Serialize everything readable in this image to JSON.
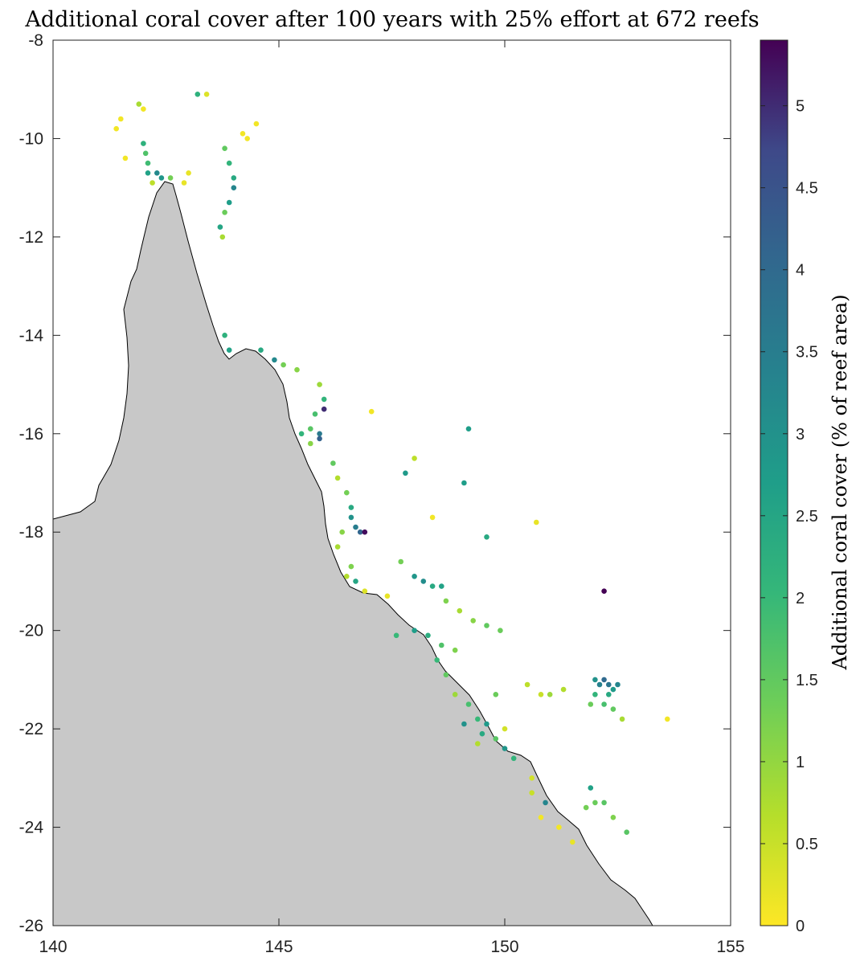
{
  "chart_data": {
    "type": "scatter",
    "title": "Additional coral cover after 100 years with 25% effort at 672 reefs",
    "xlim": [
      140,
      155
    ],
    "ylim": [
      -26,
      -8
    ],
    "x_ticks": [
      "140",
      "145",
      "150",
      "155"
    ],
    "y_ticks": [
      "-8",
      "-10",
      "-12",
      "-14",
      "-16",
      "-18",
      "-20",
      "-22",
      "-24",
      "-26"
    ],
    "colorbar": {
      "label": "Additional coral cover (% of reef area)",
      "range": [
        0,
        5.4
      ],
      "ticks": [
        "0",
        "0.5",
        "1",
        "1.5",
        "2",
        "2.5",
        "3",
        "3.5",
        "4",
        "4.5",
        "5"
      ],
      "colormap": "viridis-reversed"
    },
    "land_color": "#c8c8c8",
    "grid": false,
    "series": [
      {
        "points": [
          [
            141.4,
            -9.8,
            0.1
          ],
          [
            141.5,
            -9.6,
            0.1
          ],
          [
            141.6,
            -10.4,
            0.1
          ],
          [
            141.9,
            -9.3,
            0.8
          ],
          [
            142.0,
            -9.4,
            0.1
          ],
          [
            142.0,
            -10.1,
            2.2
          ],
          [
            142.05,
            -10.3,
            1.7
          ],
          [
            142.1,
            -10.5,
            1.9
          ],
          [
            142.1,
            -10.7,
            2.6
          ],
          [
            142.2,
            -10.9,
            0.6
          ],
          [
            142.3,
            -10.7,
            3.2
          ],
          [
            142.4,
            -10.8,
            2.9
          ],
          [
            142.6,
            -10.8,
            1.3
          ],
          [
            142.9,
            -10.9,
            0.2
          ],
          [
            143.0,
            -10.7,
            0.2
          ],
          [
            143.2,
            -9.1,
            2.2
          ],
          [
            143.4,
            -9.1,
            0.3
          ],
          [
            143.8,
            -10.2,
            1.5
          ],
          [
            143.9,
            -10.5,
            2.1
          ],
          [
            144.0,
            -10.8,
            2.4
          ],
          [
            144.0,
            -11.0,
            3.3
          ],
          [
            143.9,
            -11.3,
            2.7
          ],
          [
            143.8,
            -11.5,
            1.4
          ],
          [
            143.7,
            -11.8,
            2.5
          ],
          [
            143.75,
            -12.0,
            0.8
          ],
          [
            144.3,
            -10.0,
            0.1
          ],
          [
            144.5,
            -9.7,
            0.1
          ],
          [
            144.2,
            -9.9,
            0.1
          ],
          [
            143.8,
            -14.0,
            2.2
          ],
          [
            143.9,
            -14.3,
            2.6
          ],
          [
            144.6,
            -14.3,
            2.4
          ],
          [
            144.9,
            -14.5,
            3.2
          ],
          [
            145.1,
            -14.6,
            1.3
          ],
          [
            145.4,
            -14.7,
            1.1
          ],
          [
            145.9,
            -15.0,
            0.9
          ],
          [
            146.0,
            -15.3,
            2.1
          ],
          [
            146.0,
            -15.5,
            5.0
          ],
          [
            145.8,
            -15.6,
            1.8
          ],
          [
            145.7,
            -15.9,
            1.6
          ],
          [
            145.9,
            -16.0,
            3.6
          ],
          [
            145.9,
            -16.1,
            4.2
          ],
          [
            145.5,
            -16.0,
            2.1
          ],
          [
            145.7,
            -16.2,
            1.1
          ],
          [
            146.2,
            -16.6,
            1.5
          ],
          [
            146.3,
            -16.9,
            0.7
          ],
          [
            146.5,
            -17.2,
            1.3
          ],
          [
            146.6,
            -17.5,
            2.4
          ],
          [
            146.6,
            -17.7,
            3.0
          ],
          [
            146.7,
            -17.9,
            3.5
          ],
          [
            146.8,
            -18.0,
            4.1
          ],
          [
            146.9,
            -18.0,
            5.3
          ],
          [
            146.4,
            -18.0,
            1.1
          ],
          [
            146.3,
            -18.3,
            0.8
          ],
          [
            146.6,
            -18.7,
            1.2
          ],
          [
            146.5,
            -18.9,
            0.7
          ],
          [
            146.7,
            -19.0,
            2.5
          ],
          [
            146.9,
            -19.2,
            0.3
          ],
          [
            147.4,
            -19.3,
            0.2
          ],
          [
            147.7,
            -18.6,
            1.3
          ],
          [
            148.0,
            -18.9,
            2.9
          ],
          [
            148.2,
            -19.0,
            3.1
          ],
          [
            148.4,
            -19.1,
            2.4
          ],
          [
            148.6,
            -19.1,
            2.6
          ],
          [
            148.7,
            -19.4,
            1.2
          ],
          [
            149.0,
            -19.6,
            0.8
          ],
          [
            149.3,
            -19.8,
            1.1
          ],
          [
            149.6,
            -19.9,
            1.5
          ],
          [
            149.9,
            -20.0,
            1.4
          ],
          [
            147.6,
            -20.1,
            2.0
          ],
          [
            148.0,
            -20.0,
            2.7
          ],
          [
            148.3,
            -20.1,
            2.3
          ],
          [
            148.6,
            -20.3,
            1.7
          ],
          [
            148.9,
            -20.4,
            1.2
          ],
          [
            148.5,
            -20.6,
            2.0
          ],
          [
            148.7,
            -20.9,
            1.5
          ],
          [
            148.9,
            -21.3,
            0.9
          ],
          [
            149.2,
            -21.5,
            1.8
          ],
          [
            149.4,
            -21.8,
            2.0
          ],
          [
            149.5,
            -22.1,
            2.4
          ],
          [
            149.8,
            -22.2,
            1.6
          ],
          [
            150.0,
            -22.4,
            2.9
          ],
          [
            150.2,
            -22.6,
            2.1
          ],
          [
            149.4,
            -22.3,
            0.7
          ],
          [
            149.1,
            -21.9,
            3.0
          ],
          [
            149.6,
            -21.9,
            2.8
          ],
          [
            149.8,
            -21.3,
            1.4
          ],
          [
            150.0,
            -22.0,
            0.4
          ],
          [
            150.5,
            -21.1,
            0.6
          ],
          [
            150.8,
            -21.3,
            0.5
          ],
          [
            151.0,
            -21.3,
            0.9
          ],
          [
            151.3,
            -21.2,
            0.7
          ],
          [
            152.0,
            -21.0,
            3.0
          ],
          [
            152.1,
            -21.1,
            3.4
          ],
          [
            152.2,
            -21.0,
            4.0
          ],
          [
            152.3,
            -21.1,
            3.7
          ],
          [
            152.4,
            -21.2,
            2.8
          ],
          [
            152.5,
            -21.1,
            3.3
          ],
          [
            152.3,
            -21.3,
            2.4
          ],
          [
            152.2,
            -21.5,
            1.8
          ],
          [
            152.0,
            -21.3,
            2.1
          ],
          [
            151.9,
            -21.5,
            1.4
          ],
          [
            152.4,
            -21.6,
            1.5
          ],
          [
            152.6,
            -21.8,
            0.8
          ],
          [
            150.6,
            -23.0,
            0.4
          ],
          [
            150.6,
            -23.3,
            0.5
          ],
          [
            150.9,
            -23.5,
            3.3
          ],
          [
            150.8,
            -23.8,
            0.1
          ],
          [
            151.2,
            -24.0,
            0.1
          ],
          [
            151.5,
            -24.3,
            0.2
          ],
          [
            151.8,
            -23.6,
            1.3
          ],
          [
            151.9,
            -23.2,
            2.6
          ],
          [
            152.2,
            -23.5,
            1.6
          ],
          [
            152.4,
            -23.8,
            1.2
          ],
          [
            152.7,
            -24.1,
            1.6
          ],
          [
            152.0,
            -23.5,
            1.4
          ],
          [
            147.05,
            -15.55,
            0.1
          ],
          [
            148.0,
            -16.5,
            0.6
          ],
          [
            147.8,
            -16.8,
            2.8
          ],
          [
            149.2,
            -15.9,
            2.7
          ],
          [
            149.1,
            -17.0,
            2.7
          ],
          [
            148.4,
            -17.7,
            0.1
          ],
          [
            149.6,
            -18.1,
            2.4
          ],
          [
            150.7,
            -17.8,
            0.2
          ],
          [
            152.2,
            -19.2,
            5.4
          ],
          [
            153.6,
            -21.8,
            0.1
          ]
        ]
      }
    ]
  }
}
